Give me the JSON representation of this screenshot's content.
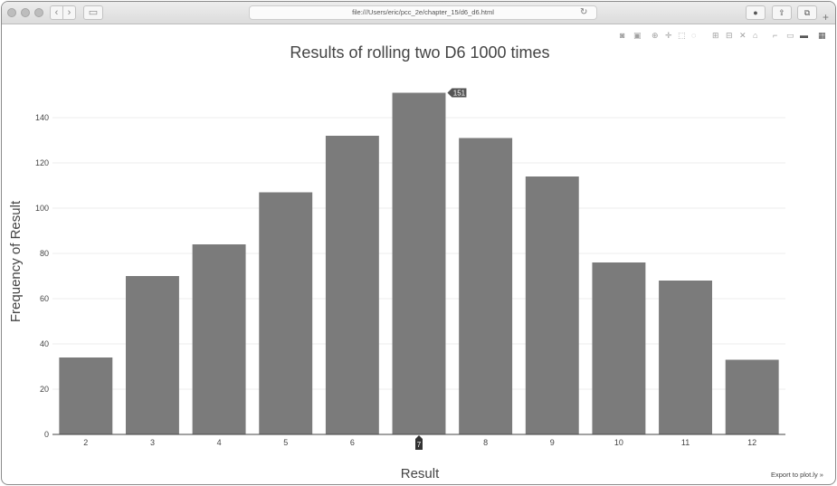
{
  "browser": {
    "url": "file:///Users/eric/pcc_2e/chapter_15/d6_d6.html",
    "back_icon": "chevron-left-icon",
    "forward_icon": "chevron-right-icon",
    "sidebar_icon": "sidebar-icon",
    "reload_icon": "reload-icon",
    "plus_label": "+"
  },
  "modebar_icons": [
    "camera-icon",
    "save-icon",
    "zoom-icon",
    "pan-icon",
    "box-select-icon",
    "lasso-icon",
    "zoom-in-icon",
    "zoom-out-icon",
    "autoscale-icon",
    "home-icon",
    "spike-icon",
    "hover-closest-icon",
    "hover-compare-icon",
    "plotly-logo-icon"
  ],
  "export_link": "Export to plot.ly »",
  "hover": {
    "value_label": "151",
    "category_label": "7"
  },
  "colors": {
    "bar": "#7b7b7b",
    "grid": "#eeeeee",
    "text": "#444444"
  },
  "chart_data": {
    "type": "bar",
    "title": "Results of rolling two D6 1000 times",
    "xlabel": "Result",
    "ylabel": "Frequency of Result",
    "categories": [
      "2",
      "3",
      "4",
      "5",
      "6",
      "7",
      "8",
      "9",
      "10",
      "11",
      "12"
    ],
    "values": [
      34,
      70,
      84,
      107,
      132,
      151,
      131,
      114,
      76,
      68,
      33
    ],
    "ylim": [
      0,
      160
    ],
    "yticks": [
      0,
      20,
      40,
      60,
      80,
      100,
      120,
      140
    ],
    "grid": true,
    "legend": "none"
  }
}
